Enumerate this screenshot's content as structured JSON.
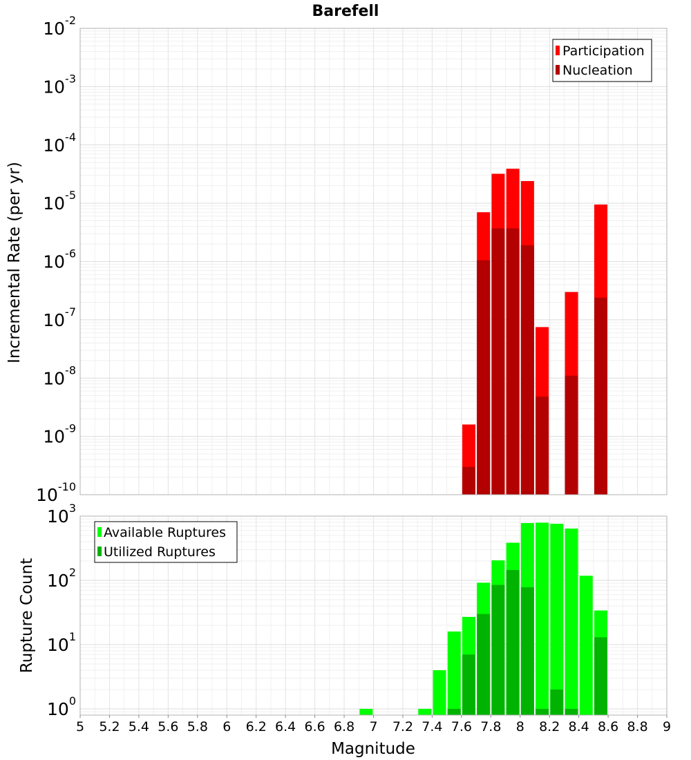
{
  "chart_data": [
    {
      "type": "bar",
      "title": "Barefell",
      "xlabel": "Magnitude",
      "ylabel": "Incremental Rate (per yr)",
      "yscale": "log",
      "xlim": [
        5,
        9
      ],
      "ylim": [
        1e-10,
        0.01
      ],
      "yticks": [
        {
          "base": "10",
          "exp": "-2"
        },
        {
          "base": "10",
          "exp": "-3"
        },
        {
          "base": "10",
          "exp": "-4"
        },
        {
          "base": "10",
          "exp": "-5"
        },
        {
          "base": "10",
          "exp": "-6"
        },
        {
          "base": "10",
          "exp": "-7"
        },
        {
          "base": "10",
          "exp": "-8"
        },
        {
          "base": "10",
          "exp": "-9"
        },
        {
          "base": "10",
          "exp": "-10"
        }
      ],
      "legend_position": "top-right",
      "series": [
        {
          "name": "Participation",
          "color": "#ff0000",
          "x": [
            7.65,
            7.75,
            7.85,
            7.95,
            8.05,
            8.15,
            8.35,
            8.55
          ],
          "values": [
            1.6e-09,
            7e-06,
            3.2e-05,
            3.9e-05,
            2.4e-05,
            7.5e-08,
            3e-07,
            9.5e-06
          ]
        },
        {
          "name": "Nucleation",
          "color": "#b30000",
          "x": [
            7.65,
            7.75,
            7.85,
            7.95,
            8.05,
            8.15,
            8.35,
            8.55
          ],
          "values": [
            3e-10,
            1.05e-06,
            3.7e-06,
            3.7e-06,
            1.9e-06,
            4.8e-09,
            1.1e-08,
            2.4e-07
          ]
        }
      ]
    },
    {
      "type": "bar",
      "xlabel": "Magnitude",
      "ylabel": "Rupture Count",
      "yscale": "log",
      "xlim": [
        5,
        9
      ],
      "ylim": [
        0.8,
        1000
      ],
      "xticks": [
        "5",
        "5.2",
        "5.4",
        "5.6",
        "5.8",
        "6",
        "6.2",
        "6.4",
        "6.6",
        "6.8",
        "7",
        "7.2",
        "7.4",
        "7.6",
        "7.8",
        "8",
        "8.2",
        "8.4",
        "8.6",
        "8.8",
        "9"
      ],
      "yticks": [
        {
          "base": "10",
          "exp": "3"
        },
        {
          "base": "10",
          "exp": "2"
        },
        {
          "base": "10",
          "exp": "1"
        },
        {
          "base": "10",
          "exp": "0"
        }
      ],
      "legend_position": "top-left",
      "series": [
        {
          "name": "Available Ruptures",
          "color": "#00ff00",
          "x": [
            6.95,
            7.35,
            7.45,
            7.55,
            7.65,
            7.75,
            7.85,
            7.95,
            8.05,
            8.15,
            8.25,
            8.35,
            8.45,
            8.55
          ],
          "values": [
            1,
            1,
            4,
            16,
            27,
            92,
            205,
            385,
            780,
            790,
            760,
            640,
            118,
            34
          ]
        },
        {
          "name": "Utilized Ruptures",
          "color": "#00b300",
          "x": [
            7.55,
            7.65,
            7.75,
            7.85,
            7.95,
            8.05,
            8.15,
            8.25,
            8.35,
            8.55
          ],
          "values": [
            1,
            7,
            30,
            85,
            145,
            78,
            1,
            2,
            1,
            13
          ]
        }
      ]
    }
  ]
}
